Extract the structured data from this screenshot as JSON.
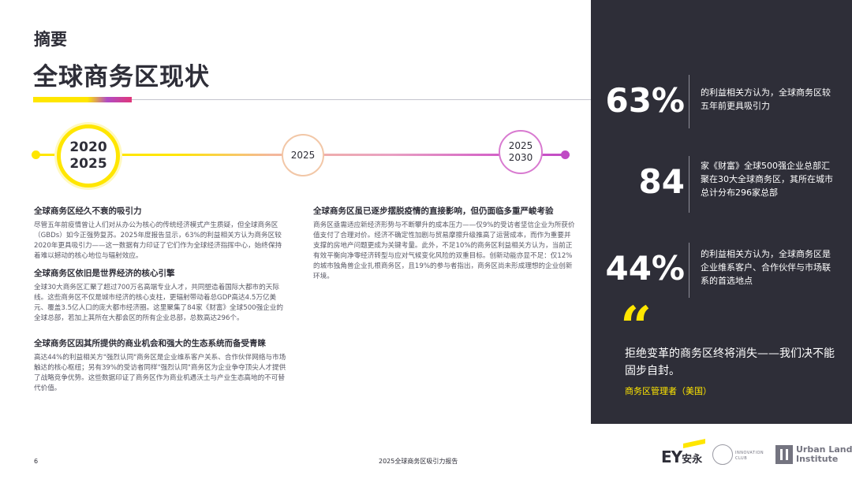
{
  "header": {
    "section_label": "摘要",
    "title": "全球商务区现状"
  },
  "timeline": {
    "current_year_top": "2020",
    "current_year_bottom": "2025",
    "middle_year": "2025",
    "future_year_top": "2025",
    "future_year_bottom": "2030"
  },
  "blocks": [
    {
      "heading": "全球商务区经久不衰的吸引力",
      "body": "尽管五年前疫情曾让人们对从办公为核心的传统经济模式产生质疑，但全球商务区（GBDs）如今正强势复苏。2025年度报告显示，63%的利益相关方认为商务区较2020年更具吸引力——这一数据有力印证了它们作为全球经济指挥中心，始终保持着难以撼动的核心地位与辐射效应。"
    },
    {
      "heading": "全球商务区依旧是世界经济的核心引擎",
      "body": "全球30大商务区汇聚了超过700万名高端专业人才，共同塑造着国际大都市的天际线。这些商务区不仅是城市经济的核心支柱，更辐射带动着总GDP高达4.5万亿美元、覆盖3.5亿人口的庞大都市经济圈。这里聚集了84家《财富》全球500强企业的全球总部，若加上其所在大都会区的所有企业总部，总数高达296个。"
    },
    {
      "heading": "全球商务区因其所提供的商业机会和强大的生态系统而备受青睐",
      "body": "高达44%的利益相关方\"强烈认同\"商务区是企业维系客户关系、合作伙伴网络与市场触达的核心枢纽；另有39%的受访者同样\"强烈认同\"商务区为企业争夺顶尖人才提供了战略竞争优势。这些数据印证了商务区作为商业机遇沃土与产业生态高地的不可替代价值。"
    },
    {
      "heading": "全球商务区虽已逐步摆脱疫情的直接影响，但仍面临多重严峻考验",
      "body": "商务区亟需适应新经济形势与不断攀升的成本压力——仅9%的受访者坚信企业为所获价值支付了合理对价。经济不确定性加剧与贸易摩擦升级推高了运营成本，而作为重要并支撑的房地产问题更成为关键考量。此外，不足10%的商务区利益相关方认为，当前正有效平衡向净零经济转型与应对气候变化风险的双重目标。创新动能亦显不足：仅12%的城市独角兽企业扎根商务区，且19%的参与者指出，商务区尚未形成理想的企业创新环境。"
    }
  ],
  "stats": [
    {
      "value": "63%",
      "description": "的利益相关方认为，全球商务区较五年前更具吸引力"
    },
    {
      "value": "84",
      "description": "家《财富》全球500强企业总部汇聚在30大全球商务区，其所在城市总计分布296家总部"
    },
    {
      "value": "44%",
      "description": "的利益相关方认为，全球商务区是企业维系客户、合作伙伴与市场联系的首选地点"
    }
  ],
  "quote": {
    "mark": "“",
    "text": "拒绝变革的商务区终将消失——我们决不能固步自封。",
    "source": "商务区管理者（美国）"
  },
  "footer": {
    "page_number": "6",
    "report_title": "2025全球商务区吸引力报告",
    "logo_ey": "EY",
    "logo_ey_cn": "安永",
    "logo_club_line1": "INNOVATION",
    "logo_club_line2": "CLUB",
    "logo_uli_line1": "Urban Land",
    "logo_uli_line2": "Institute"
  },
  "colors": {
    "brand_yellow": "#ffe600",
    "dark_panel": "#2e2e38",
    "accent_purple": "#c04bc4"
  }
}
